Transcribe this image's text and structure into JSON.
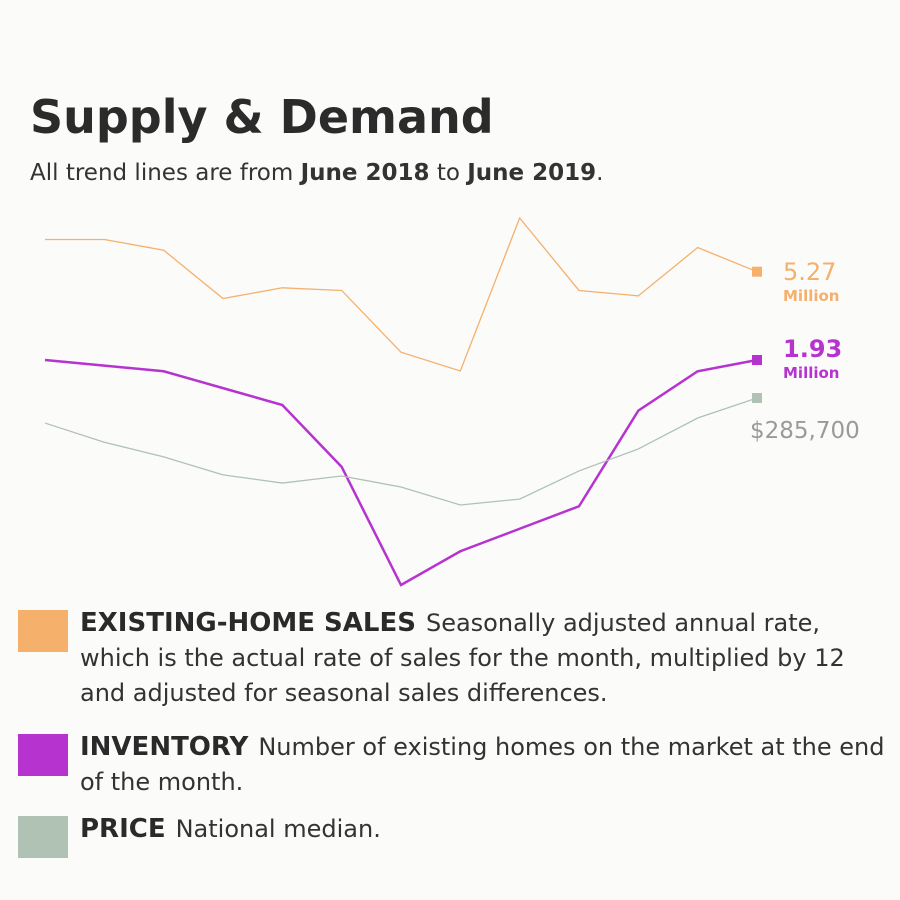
{
  "chart_data": {
    "type": "line",
    "title": "Supply & Demand",
    "subtitle": [
      "All trend lines are from ",
      "June 2018",
      " to ",
      "June 2019",
      "."
    ],
    "series": [
      {
        "name": "EXISTING-HOME SALES",
        "description": "Seasonally adjusted annual rate, which is the actual rate of sales for the month, multiplied by 12 and adjusted for seasonal sales differences.",
        "color": "#f5b06c",
        "unit": "Million",
        "values": [
          5.39,
          5.39,
          5.35,
          5.17,
          5.21,
          5.2,
          4.97,
          4.9,
          5.47,
          5.2,
          5.18,
          5.36,
          5.27
        ]
      },
      {
        "name": "INVENTORY",
        "description": "Number of existing homes on the market at the end of the month.",
        "color": "#b733d0",
        "unit": "Million",
        "values": [
          1.93,
          1.92,
          1.91,
          1.88,
          1.85,
          1.74,
          1.53,
          1.59,
          1.63,
          1.67,
          1.84,
          1.91,
          1.93
        ]
      },
      {
        "name": "PRICE",
        "description": "National median.",
        "color": "#afc2b4",
        "values": [
          276800,
          270000,
          264800,
          258400,
          255500,
          258000,
          254100,
          247700,
          249800,
          259800,
          267600,
          278600,
          285700
        ],
        "value_labels": [
          null,
          null,
          null,
          null,
          null,
          null,
          null,
          null,
          null,
          null,
          null,
          null,
          "$285,700"
        ]
      }
    ]
  }
}
